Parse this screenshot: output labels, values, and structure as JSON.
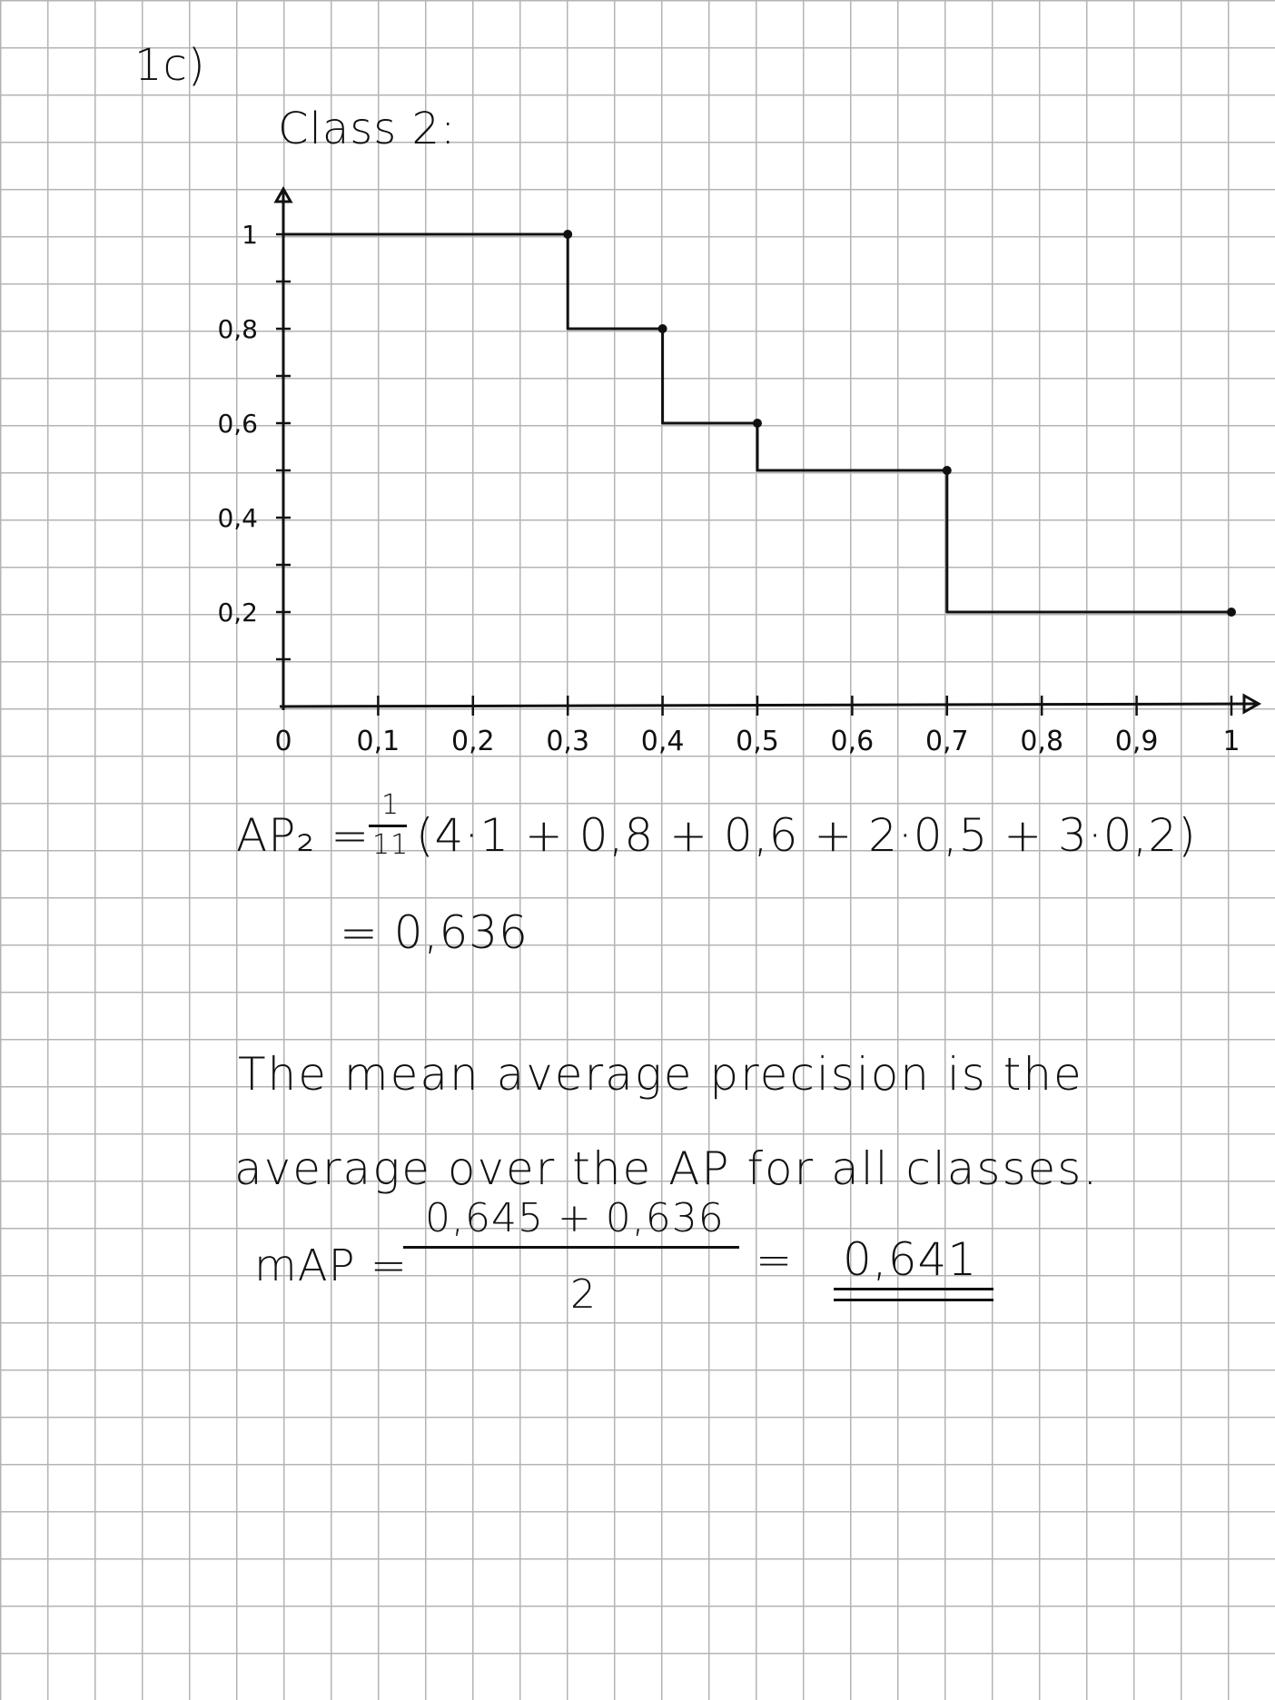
{
  "header": {
    "problem_label": "1c)",
    "class_title": "Class 2:"
  },
  "chart_data": {
    "type": "line",
    "step": true,
    "x_ticks": [
      "0",
      "0,1",
      "0,2",
      "0,3",
      "0,4",
      "0,5",
      "0,6",
      "0,7",
      "0,8",
      "0,9",
      "1"
    ],
    "y_ticks": [
      "0,2",
      "0,4",
      "0,6",
      "0,8",
      "1"
    ],
    "xlim": [
      0,
      1
    ],
    "ylim": [
      0,
      1
    ],
    "points": [
      {
        "x": 0,
        "y": 1
      },
      {
        "x": 0.3,
        "y": 1
      },
      {
        "x": 0.3,
        "y": 0.8
      },
      {
        "x": 0.4,
        "y": 0.8
      },
      {
        "x": 0.4,
        "y": 0.6
      },
      {
        "x": 0.5,
        "y": 0.6
      },
      {
        "x": 0.5,
        "y": 0.5
      },
      {
        "x": 0.7,
        "y": 0.5
      },
      {
        "x": 0.7,
        "y": 0.2
      },
      {
        "x": 1.0,
        "y": 0.2
      }
    ],
    "markers": [
      {
        "x": 0.3,
        "y": 1
      },
      {
        "x": 0.4,
        "y": 0.8
      },
      {
        "x": 0.5,
        "y": 0.6
      },
      {
        "x": 0.7,
        "y": 0.5
      },
      {
        "x": 1.0,
        "y": 0.2
      }
    ]
  },
  "calc": {
    "ap_lhs": "AP₂ =",
    "ap_frac_num": "1",
    "ap_frac_den": "11",
    "ap_expr": "(4·1 + 0,8 + 0,6 + 2·0,5 + 3·0,2)",
    "ap_result": "= 0,636"
  },
  "text": {
    "line1": "The mean average precision is the",
    "line2": "average over the AP for all classes."
  },
  "map": {
    "lhs": "mAP =",
    "numerator": "0,645 + 0,636",
    "denominator": "2",
    "equals": "=",
    "result": "0,641"
  },
  "colors": {
    "ink": "#111111",
    "grid": "#b4b4b4"
  }
}
